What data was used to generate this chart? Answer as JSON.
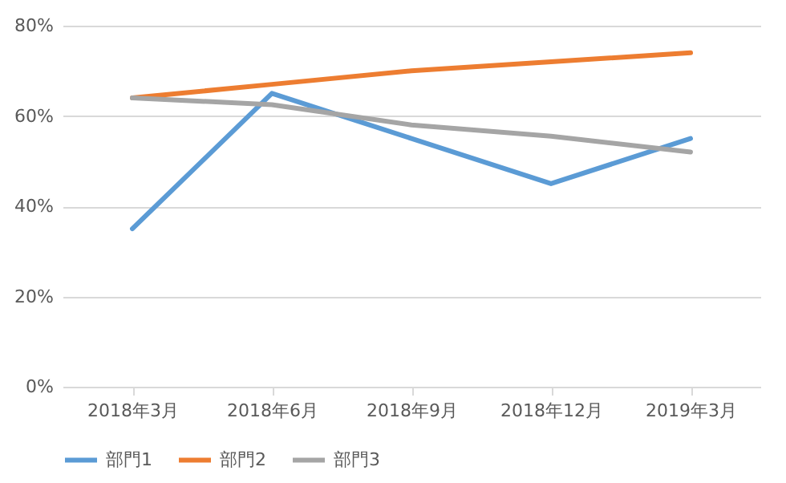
{
  "chart_data": {
    "type": "line",
    "categories": [
      "2018年3月",
      "2018年6月",
      "2018年9月",
      "2018年12月",
      "2019年3月"
    ],
    "series": [
      {
        "name": "部門1",
        "color": "#5b9bd5",
        "values": [
          35,
          65,
          55,
          45,
          55
        ]
      },
      {
        "name": "部門2",
        "color": "#ed7d31",
        "values": [
          64,
          67,
          70,
          72,
          74
        ]
      },
      {
        "name": "部門3",
        "color": "#a5a5a5",
        "values": [
          64,
          62.5,
          58,
          55.5,
          52
        ]
      }
    ],
    "ylim": [
      0,
      80
    ],
    "yticks": [
      {
        "value": 0,
        "label": "0%"
      },
      {
        "value": 20,
        "label": "20%"
      },
      {
        "value": 40,
        "label": "40%"
      },
      {
        "value": 60,
        "label": "60%"
      },
      {
        "value": 80,
        "label": "80%"
      }
    ],
    "grid": "y",
    "legend": "bottom",
    "line_style": "solid",
    "marker": "none"
  }
}
